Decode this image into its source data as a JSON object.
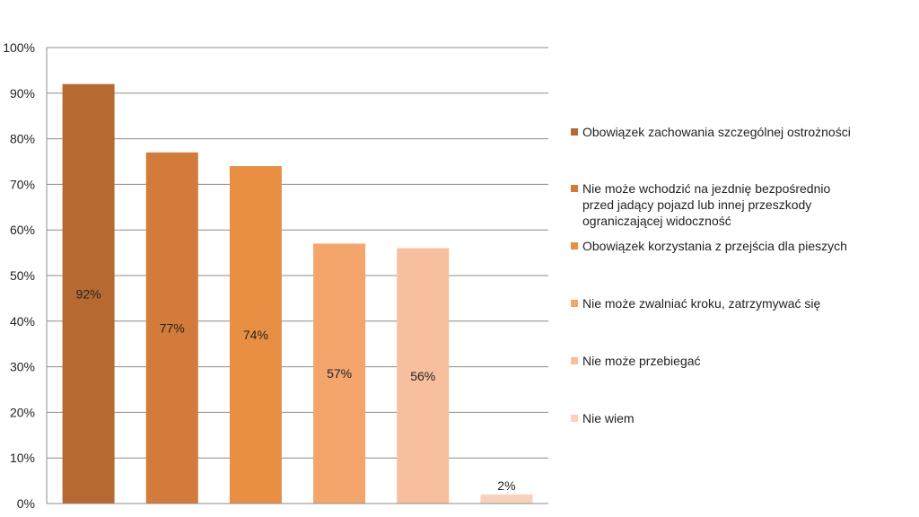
{
  "chart_data": {
    "type": "bar",
    "categories": [
      "Obowiązek zachowania szczególnej ostrożności",
      "Nie może wchodzić na jezdnię bezpośrednio przed jadący pojazd lub innej przeszkody ograniczającej widoczność",
      "Obowiązek korzystania z przejścia dla pieszych",
      "Nie może zwalniać kroku, zatrzymywać się",
      "Nie może przebiegać",
      "Nie wiem"
    ],
    "values": [
      92,
      77,
      74,
      57,
      56,
      2
    ],
    "data_labels": [
      "92%",
      "77%",
      "74%",
      "57%",
      "56%",
      "2%"
    ],
    "colors": [
      "#b66a32",
      "#d27b3a",
      "#e98f44",
      "#f4a56c",
      "#f7bf9d",
      "#f9d2bd"
    ],
    "ylim": [
      0,
      100
    ],
    "yticks": [
      "0%",
      "10%",
      "20%",
      "30%",
      "40%",
      "50%",
      "60%",
      "70%",
      "80%",
      "90%",
      "100%"
    ],
    "title": "",
    "xlabel": "",
    "ylabel": "",
    "grid": true,
    "legend_position": "right"
  }
}
